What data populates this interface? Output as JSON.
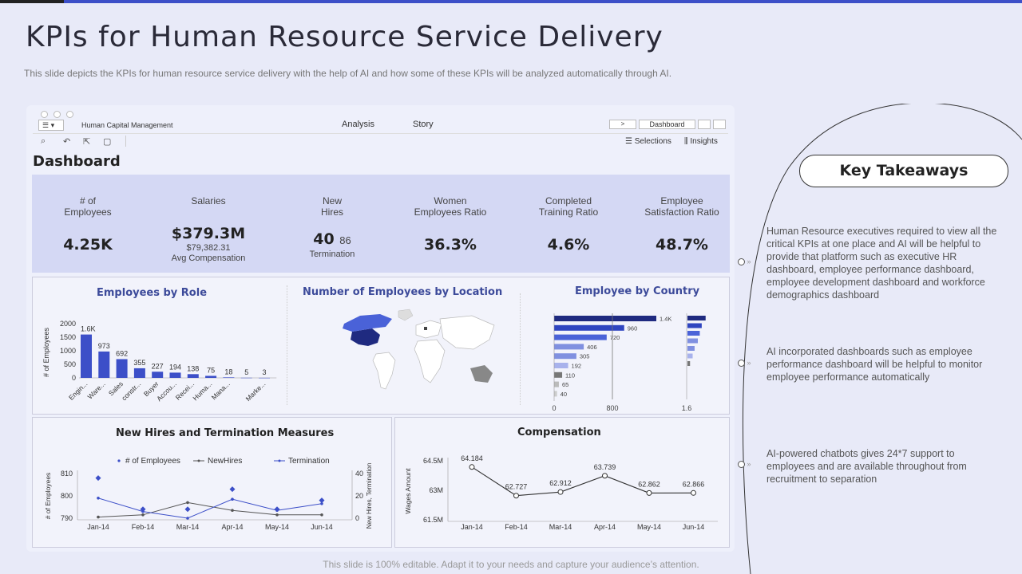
{
  "page": {
    "title": "KPIs for Human Resource Service Delivery",
    "subtitle": "This slide depicts the KPIs for human resource service delivery with the help of AI  and how some of these KPIs will be analyzed automatically through AI.",
    "footer": "This slide is 100% editable. Adapt it to your needs and capture your audience’s attention."
  },
  "app": {
    "menu_icon": "hamburger-icon",
    "name": "Human Capital Management",
    "tabs": [
      "Analysis",
      "Story"
    ],
    "nav_next": ">",
    "nav_sheet": "Dashboard",
    "selections": "Selections",
    "insights": "Insights"
  },
  "dashboard": {
    "heading": "Dashboard",
    "kpis": [
      {
        "label": "# of\nEmployees",
        "value": "4.25K"
      },
      {
        "label": "Salaries",
        "value": "$379.3M",
        "sub1": "$79,382.31",
        "sub2": "Avg Compensation"
      },
      {
        "label": "New\nHires",
        "value": "40",
        "value2": "86",
        "sub1": "Termination"
      },
      {
        "label": "Women\nEmployees Ratio",
        "value": "36.3%"
      },
      {
        "label": "Completed\nTraining Ratio",
        "value": "4.6%"
      },
      {
        "label": "Employee\nSatisfaction Ratio",
        "value": "48.7%"
      }
    ],
    "panels": {
      "role": "Employees by Role",
      "location": "Number of Employees by Location",
      "country": "Employee by Country",
      "hires": "New Hires and Termination Measures",
      "comp": "Compensation"
    }
  },
  "chart_data": [
    {
      "type": "bar",
      "title": "Employees by Role",
      "ylabel": "# of Employees",
      "categories": [
        "Engin...",
        "Ware...",
        "Sales",
        "constr...",
        "Buyer",
        "Accou...",
        "Recei...",
        "Huma...",
        "Mana...",
        "",
        "Marke..."
      ],
      "values": [
        1600,
        973,
        692,
        355,
        227,
        194,
        138,
        75,
        18,
        5,
        3
      ],
      "labels": [
        "1.6K",
        "973",
        "692",
        "355",
        "227",
        "194",
        "138",
        "75",
        "18",
        "5",
        "3"
      ],
      "yticks": [
        0,
        500,
        1000,
        1500,
        2000
      ],
      "ylim": [
        0,
        2000
      ]
    },
    {
      "type": "bar",
      "title": "Employee by Country",
      "orientation": "horizontal",
      "values": [
        1400,
        960,
        720,
        406,
        305,
        192,
        110,
        65,
        40
      ],
      "labels": [
        "1.4K",
        "960",
        "720",
        "406",
        "305",
        "192",
        "110",
        "65",
        "40"
      ],
      "xticks": [
        "0",
        "800"
      ],
      "mini_tick": "1.6",
      "mini_values": [
        1.4,
        1.1,
        0.95,
        0.8,
        0.55,
        0.4,
        0.2
      ]
    },
    {
      "type": "line",
      "title": "New Hires and Termination Measures",
      "ylabel": "# of Employees",
      "y2label": "New Hires, Termination",
      "x": [
        "Jan-14",
        "Feb-14",
        "Mar-14",
        "Apr-14",
        "May-14",
        "Jun-14"
      ],
      "yticks": [
        790,
        800,
        810
      ],
      "y2ticks": [
        0,
        20,
        40
      ],
      "legend": [
        "# of Employees",
        "NewHires",
        "Termination"
      ],
      "series": [
        {
          "name": "# of Employees",
          "values": [
            808,
            794,
            794,
            803,
            794,
            798
          ]
        },
        {
          "name": "NewHires",
          "values": [
            1,
            3,
            14,
            7,
            3,
            3
          ]
        },
        {
          "name": "Termination",
          "values": [
            18,
            6,
            0,
            17,
            7,
            13
          ]
        }
      ]
    },
    {
      "type": "line",
      "title": "Compensation",
      "ylabel": "Wages Amount",
      "x": [
        "Jan-14",
        "Feb-14",
        "Mar-14",
        "Apr-14",
        "May-14",
        "Jun-14"
      ],
      "yticks": [
        "61.5M",
        "63M",
        "64.5M"
      ],
      "ytick_values": [
        61.5,
        63,
        64.5
      ],
      "values": [
        64.184,
        62.727,
        62.912,
        63.739,
        62.862,
        62.866
      ],
      "labels": [
        "64.184",
        "62.727",
        "62.912",
        "63.739",
        "62.862",
        "62.866"
      ]
    }
  ],
  "takeaways": {
    "title": "Key Takeaways",
    "items": [
      "Human Resource executives required  to view  all the critical KPIs at one place and AI will be helpful  to provide  that platform  such as executive HR dashboard,  employee performance dashboard,  employee development  dashboard and workforce  demographics  dashboard",
      "AI incorporated  dashboards  such as employee performance  dashboard   will be helpful to monitor employee performance  automatically",
      "AI-powered  chatbots gives  24*7 support to employees and are available  throughout  from recruitment to separation"
    ]
  },
  "colors": {
    "accent": "#3c4fc8",
    "navy": "#1f2a80",
    "kpi_bg": "#d4d8f4"
  }
}
